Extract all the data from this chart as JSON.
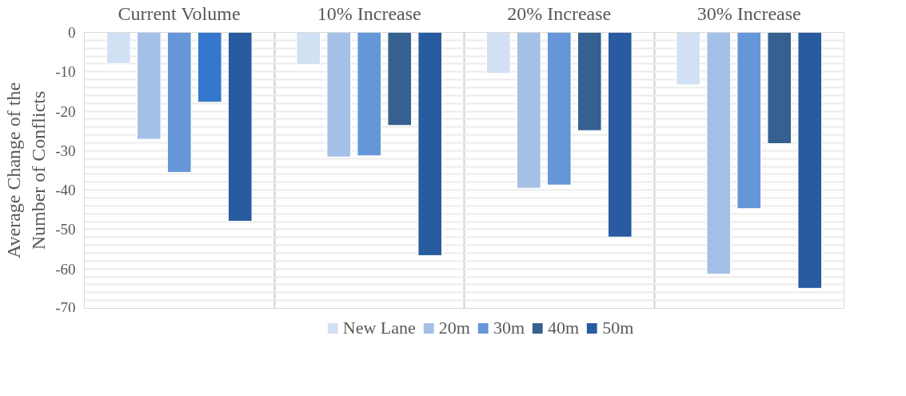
{
  "chart_data": {
    "type": "bar",
    "ylabel": "Average Change of the Number of Conflicts",
    "categories": [
      "Current Volume",
      "10% Increase",
      "20% Increase",
      "30% Increase"
    ],
    "series": [
      {
        "name": "New Lane",
        "color": "#d2e0f3",
        "values": [
          -7.9,
          -8.1,
          -10.4,
          -13.3
        ]
      },
      {
        "name": "20m",
        "color": "#a4c0e7",
        "values": [
          -27.1,
          -31.6,
          -39.5,
          -61.3
        ]
      },
      {
        "name": "30m",
        "color": "#6596d8",
        "values": [
          -35.5,
          -31.3,
          -38.7,
          -44.7
        ]
      },
      {
        "name": "40m",
        "color": "#35608f",
        "colors": [
          "#3477cc",
          null,
          null,
          null
        ],
        "values": [
          -17.7,
          -23.6,
          -24.9,
          -28.2
        ]
      },
      {
        "name": "50m",
        "color": "#285b9f",
        "values": [
          -47.9,
          -56.6,
          -51.9,
          -64.9
        ]
      }
    ],
    "ylim": [
      -70,
      0
    ],
    "yticks": [
      0,
      {
        "value": -2,
        "label": null
      },
      {
        "value": -4,
        "label": null
      },
      {
        "value": -6,
        "label": null
      },
      {
        "value": -8,
        "label": null
      },
      -10,
      {
        "value": -12,
        "label": null
      },
      {
        "value": -14,
        "label": null
      },
      {
        "value": -16,
        "label": null
      },
      {
        "value": -18,
        "label": null
      },
      -20,
      {
        "value": -22,
        "label": null
      },
      {
        "value": -24,
        "label": null
      },
      {
        "value": -26,
        "label": null
      },
      {
        "value": -28,
        "label": null
      },
      -30,
      {
        "value": -32,
        "label": null
      },
      {
        "value": -34,
        "label": null
      },
      {
        "value": -36,
        "label": null
      },
      {
        "value": -38,
        "label": null
      },
      -40,
      {
        "value": -42,
        "label": null
      },
      {
        "value": -44,
        "label": null
      },
      {
        "value": -46,
        "label": null
      },
      {
        "value": -48,
        "label": null
      },
      -50,
      {
        "value": -52,
        "label": null
      },
      {
        "value": -54,
        "label": null
      },
      {
        "value": -56,
        "label": null
      },
      {
        "value": -58,
        "label": null
      },
      -60,
      {
        "value": -62,
        "label": null
      },
      {
        "value": -64,
        "label": null
      },
      {
        "value": -66,
        "label": null
      },
      {
        "value": -68,
        "label": null
      },
      -70
    ],
    "grid": true,
    "legend": "bottom"
  }
}
